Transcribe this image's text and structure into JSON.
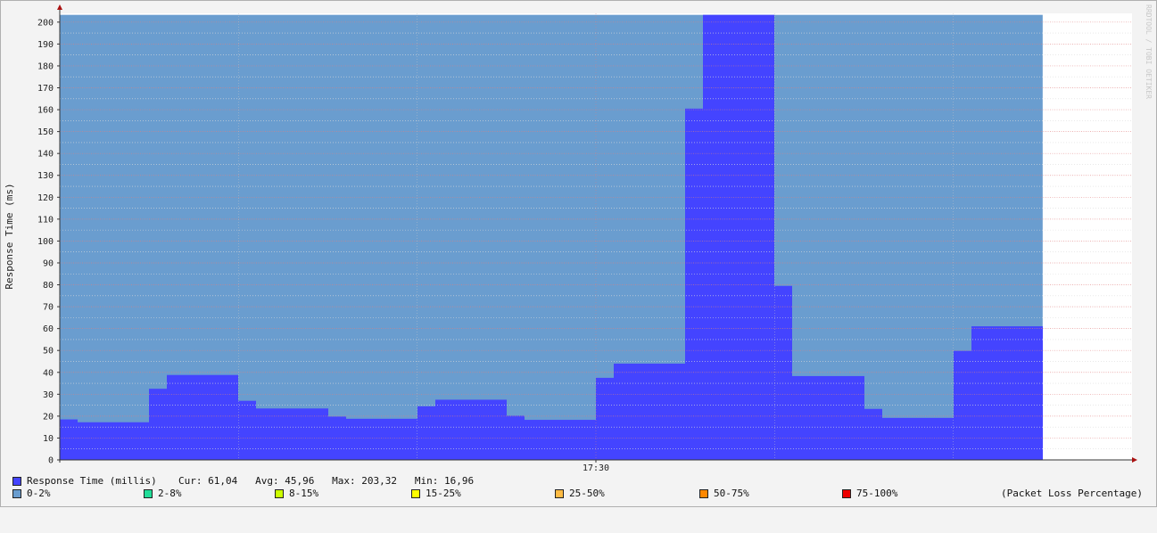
{
  "watermark": "RRDTOOL / TOBI OETIKER",
  "chart_data": {
    "type": "area",
    "ylabel": "Response Time (ms)",
    "ylim": [
      0,
      204
    ],
    "y_ticks": [
      0,
      10,
      20,
      30,
      40,
      50,
      60,
      70,
      80,
      90,
      100,
      110,
      120,
      130,
      140,
      150,
      160,
      170,
      180,
      190,
      200
    ],
    "x_range_minutes": [
      0,
      60
    ],
    "x_tick_labels": [
      {
        "minute": 30,
        "label": "17:30"
      }
    ],
    "grid": true,
    "series": [
      {
        "name": "0-2%",
        "kind": "background-area",
        "color": "#6a9dcf",
        "x_end_minute": 55,
        "value": 203.32
      },
      {
        "name": "Response Time (millis)",
        "kind": "step",
        "color": "#4444ff",
        "steps": [
          {
            "x0": 0,
            "x1": 1,
            "y": 18.5
          },
          {
            "x0": 1,
            "x1": 5,
            "y": 17.2
          },
          {
            "x0": 5,
            "x1": 6,
            "y": 32.5
          },
          {
            "x0": 6,
            "x1": 10,
            "y": 38.8
          },
          {
            "x0": 10,
            "x1": 11,
            "y": 27
          },
          {
            "x0": 11,
            "x1": 15,
            "y": 23.5
          },
          {
            "x0": 15,
            "x1": 16,
            "y": 19.8
          },
          {
            "x0": 16,
            "x1": 20,
            "y": 18.8
          },
          {
            "x0": 20,
            "x1": 21,
            "y": 24.5
          },
          {
            "x0": 21,
            "x1": 25,
            "y": 27.5
          },
          {
            "x0": 25,
            "x1": 26,
            "y": 20.2
          },
          {
            "x0": 26,
            "x1": 30,
            "y": 18.3
          },
          {
            "x0": 30,
            "x1": 31,
            "y": 37.5
          },
          {
            "x0": 31,
            "x1": 35,
            "y": 44
          },
          {
            "x0": 35,
            "x1": 36,
            "y": 160.5
          },
          {
            "x0": 36,
            "x1": 40,
            "y": 203.32
          },
          {
            "x0": 40,
            "x1": 41,
            "y": 79.5
          },
          {
            "x0": 41,
            "x1": 45,
            "y": 38.3
          },
          {
            "x0": 45,
            "x1": 46,
            "y": 23.3
          },
          {
            "x0": 46,
            "x1": 50,
            "y": 19.2
          },
          {
            "x0": 50,
            "x1": 51,
            "y": 49.8
          },
          {
            "x0": 51,
            "x1": 55,
            "y": 61.04
          }
        ]
      }
    ]
  },
  "legend": {
    "main": {
      "color": "#4444ff",
      "label": "Response Time (millis)",
      "stats": "Cur: 61,04   Avg: 45,96   Max: 203,32   Min: 16,96"
    },
    "loss_items": [
      {
        "label": "0-2%",
        "color": "#6a9dcf"
      },
      {
        "label": "2-8%",
        "color": "#22dd99"
      },
      {
        "label": "8-15%",
        "color": "#ccff00"
      },
      {
        "label": "15-25%",
        "color": "#ffff00"
      },
      {
        "label": "25-50%",
        "color": "#ffbb44"
      },
      {
        "label": "50-75%",
        "color": "#ff8800"
      },
      {
        "label": "75-100%",
        "color": "#ee0000"
      }
    ],
    "loss_title": "(Packet Loss Percentage)"
  }
}
